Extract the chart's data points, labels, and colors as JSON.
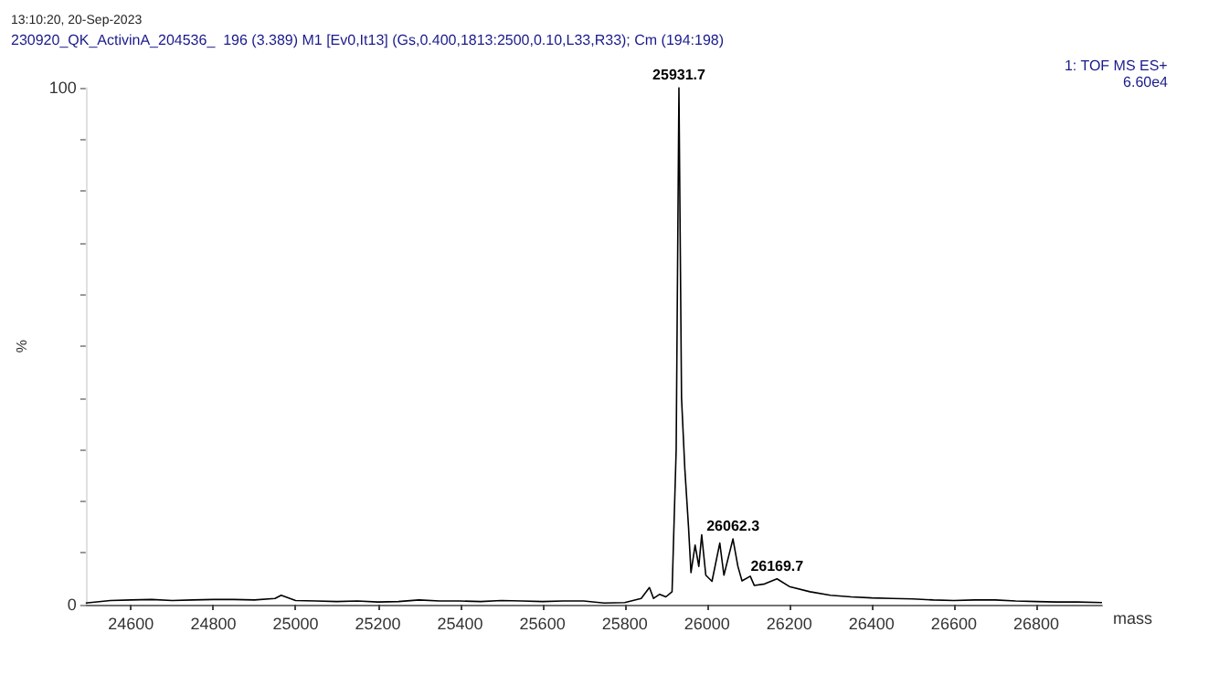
{
  "chart_data": {
    "type": "line",
    "xlabel": "mass",
    "ylabel": "%",
    "annotations": [
      "13:10:20, 20-Sep-2023",
      "230920_QK_ActivinA_204536_  196 (3.389) M1 [Ev0,It13] (Gs,0.400,1813:2500,0.10,L33,R33); Cm (194:198)",
      "1: TOF MS ES+",
      "6.60e4",
      {
        "text": "25931.7",
        "x": 25931.7,
        "y": 100
      },
      {
        "text": "26062.3",
        "x": 26063,
        "y": 12.7
      },
      {
        "text": "26169.7",
        "x": 26170,
        "y": 5
      }
    ],
    "color": "#000000",
    "marker": "none",
    "line_style": "solid",
    "grid": false,
    "x": [
      24490,
      24550,
      24600,
      24650,
      24700,
      24750,
      24800,
      24850,
      24900,
      24950,
      24965,
      25000,
      25050,
      25100,
      25150,
      25200,
      25250,
      25300,
      25350,
      25400,
      25450,
      25500,
      25550,
      25600,
      25650,
      25700,
      25750,
      25800,
      25840,
      25860,
      25870,
      25885,
      25900,
      25915,
      25925,
      25931.7,
      25938,
      25946,
      25955,
      25961,
      25971,
      25980,
      25987,
      25997,
      26012,
      26031,
      26041,
      26063,
      26075,
      26085,
      26105,
      26115,
      26140,
      26170,
      26200,
      26250,
      26300,
      26350,
      26400,
      26450,
      26500,
      26550,
      26600,
      26650,
      26700,
      26750,
      26800,
      26850,
      26900,
      26960
    ],
    "values": [
      0.3,
      0.8,
      0.9,
      1,
      0.8,
      0.9,
      1,
      1,
      0.9,
      1.2,
      1.8,
      0.8,
      0.7,
      0.6,
      0.7,
      0.5,
      0.6,
      0.9,
      0.7,
      0.7,
      0.6,
      0.8,
      0.7,
      0.6,
      0.7,
      0.7,
      0.3,
      0.4,
      1.2,
      3.3,
      1.2,
      2,
      1.5,
      2.5,
      30,
      100,
      40,
      26.3,
      15,
      6.2,
      11.5,
      7.4,
      13.5,
      5.7,
      4.5,
      11.9,
      5.7,
      12.7,
      7.4,
      4.6,
      5.5,
      3.7,
      4,
      5,
      3.5,
      2.5,
      1.8,
      1.5,
      1.3,
      1.2,
      1.1,
      0.9,
      0.8,
      0.9,
      0.9,
      0.7,
      0.6,
      0.5,
      0.5,
      0.4
    ],
    "xlim": [
      24490,
      26960
    ],
    "xticks": [
      24600,
      24800,
      25000,
      25200,
      25400,
      25600,
      25800,
      26000,
      26200,
      26400,
      26600,
      26800
    ],
    "ylim": [
      0,
      100
    ],
    "yticks": [
      0,
      {
        "value": 10,
        "label": null
      },
      {
        "value": 20,
        "label": null
      },
      {
        "value": 30,
        "label": null
      },
      {
        "value": 40,
        "label": null
      },
      {
        "value": 50,
        "label": null
      },
      {
        "value": 60,
        "label": null
      },
      {
        "value": 70,
        "label": null
      },
      {
        "value": 80,
        "label": null
      },
      {
        "value": 90,
        "label": null
      },
      100
    ]
  }
}
